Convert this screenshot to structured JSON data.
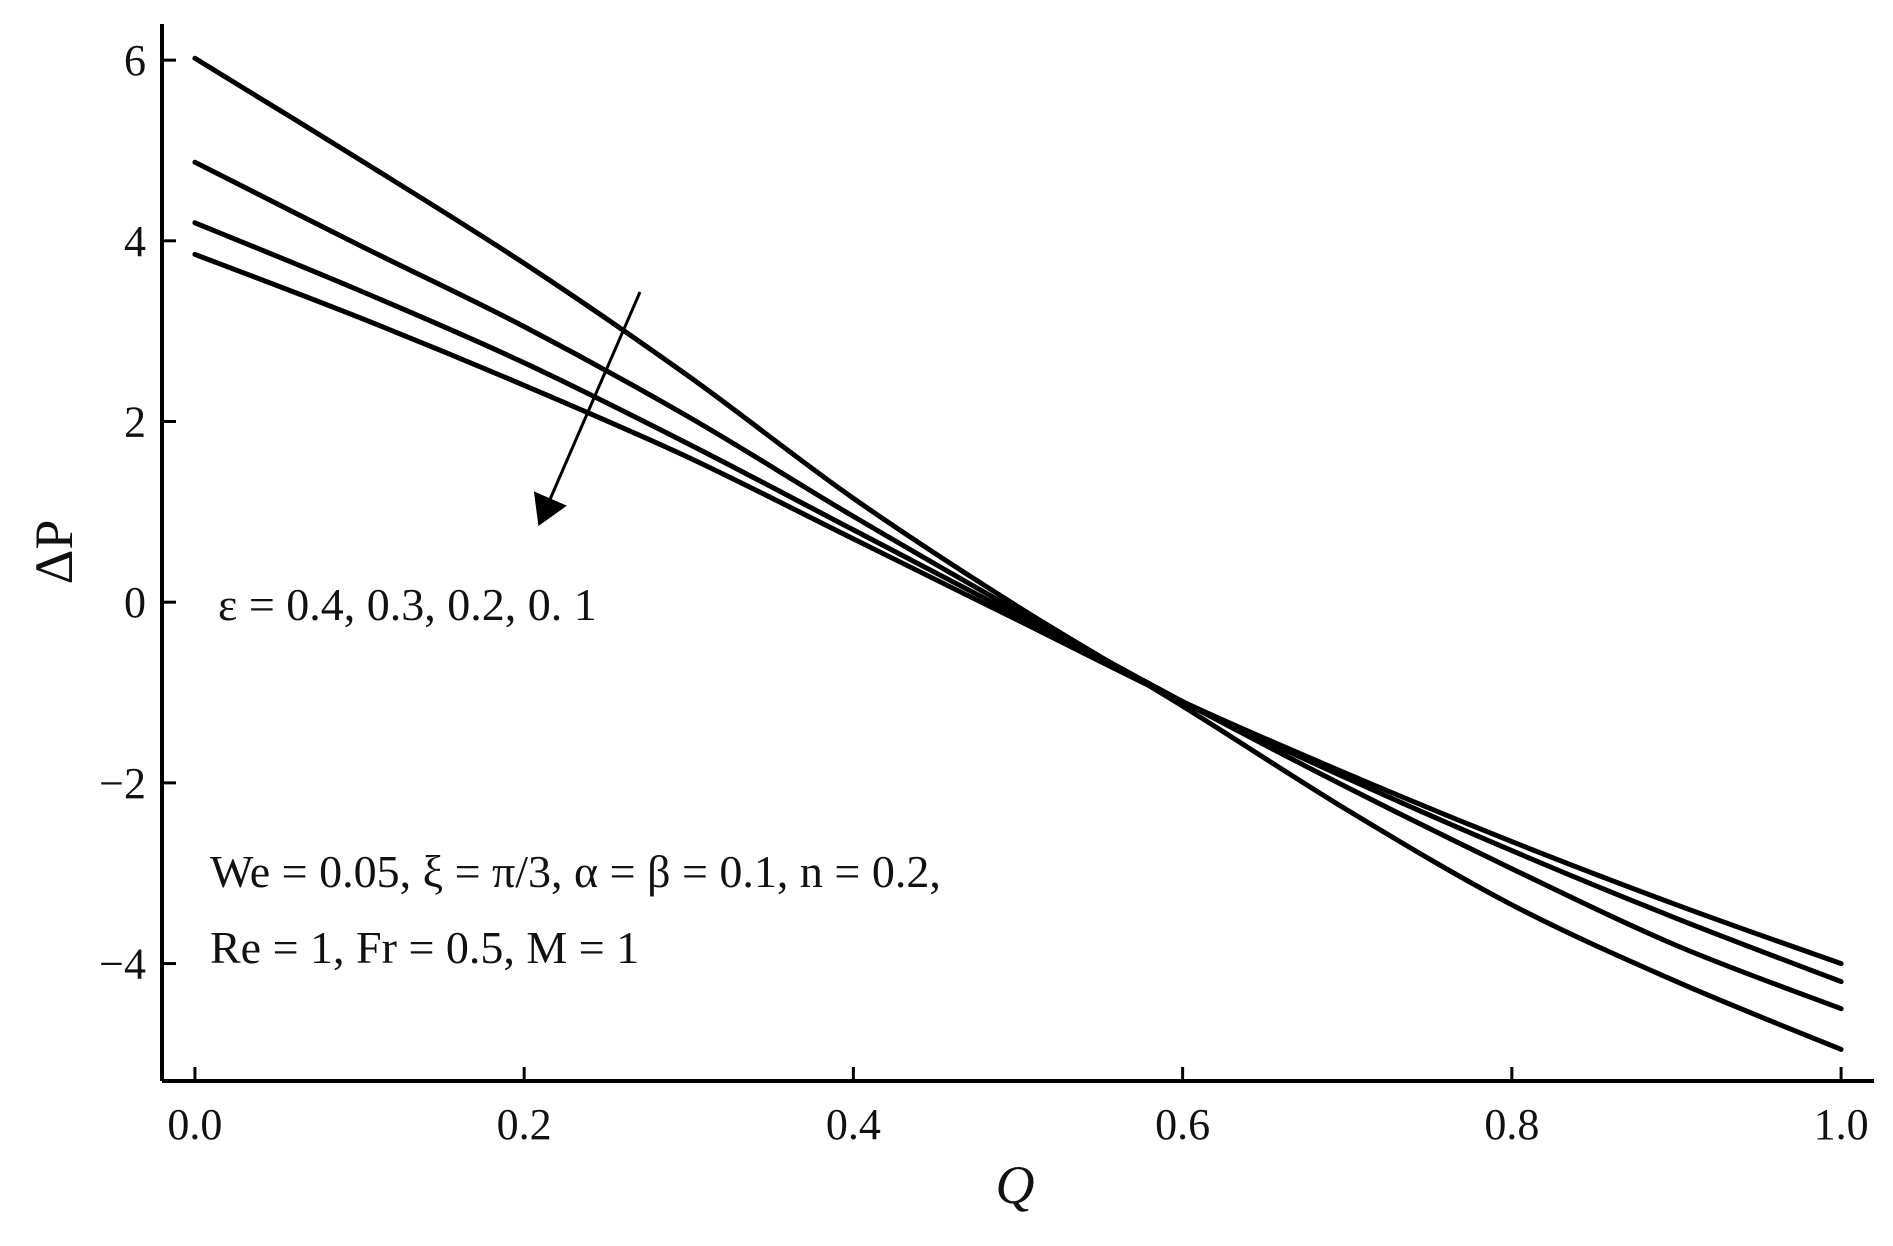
{
  "chart_data": {
    "type": "line",
    "xlabel": "Q",
    "ylabel": "ΔP",
    "xlim": [
      -0.02,
      1.02
    ],
    "ylim": [
      -5.3,
      6.4
    ],
    "xticks": [
      0.0,
      0.2,
      0.4,
      0.6,
      0.8,
      1.0
    ],
    "xtick_labels": [
      "0.0",
      "0.2",
      "0.4",
      "0.6",
      "0.8",
      "1.0"
    ],
    "yticks": [
      6,
      4,
      2,
      0,
      -2,
      -4
    ],
    "ytick_labels": [
      "6",
      "4",
      "2",
      "0",
      "−2",
      "−4"
    ],
    "grid": false,
    "x": [
      0.0,
      0.1,
      0.2,
      0.3,
      0.4,
      0.5,
      0.6,
      0.7,
      0.8,
      0.9,
      1.0
    ],
    "series": [
      {
        "values": [
          6.02,
          4.9,
          3.75,
          2.5,
          1.15,
          -0.05,
          -1.15,
          -2.3,
          -3.35,
          -4.2,
          -4.95
        ]
      },
      {
        "values": [
          4.87,
          3.95,
          3.05,
          2.05,
          0.95,
          -0.1,
          -1.1,
          -2.05,
          -2.95,
          -3.8,
          -4.5
        ]
      },
      {
        "values": [
          4.2,
          3.45,
          2.65,
          1.75,
          0.8,
          -0.15,
          -1.1,
          -1.95,
          -2.75,
          -3.5,
          -4.2
        ]
      },
      {
        "values": [
          3.85,
          3.15,
          2.4,
          1.6,
          0.7,
          -0.2,
          -1.1,
          -1.9,
          -2.65,
          -3.35,
          -4.0
        ]
      }
    ],
    "annotations": {
      "epsilon": "ε = 0.4, 0.3, 0.2, 0. 1",
      "params_line1": "We = 0.05, ξ = π/3,  α = β = 0.1, n = 0.2,",
      "params_line2": "Re = 1, Fr = 0.5, M = 1"
    }
  }
}
